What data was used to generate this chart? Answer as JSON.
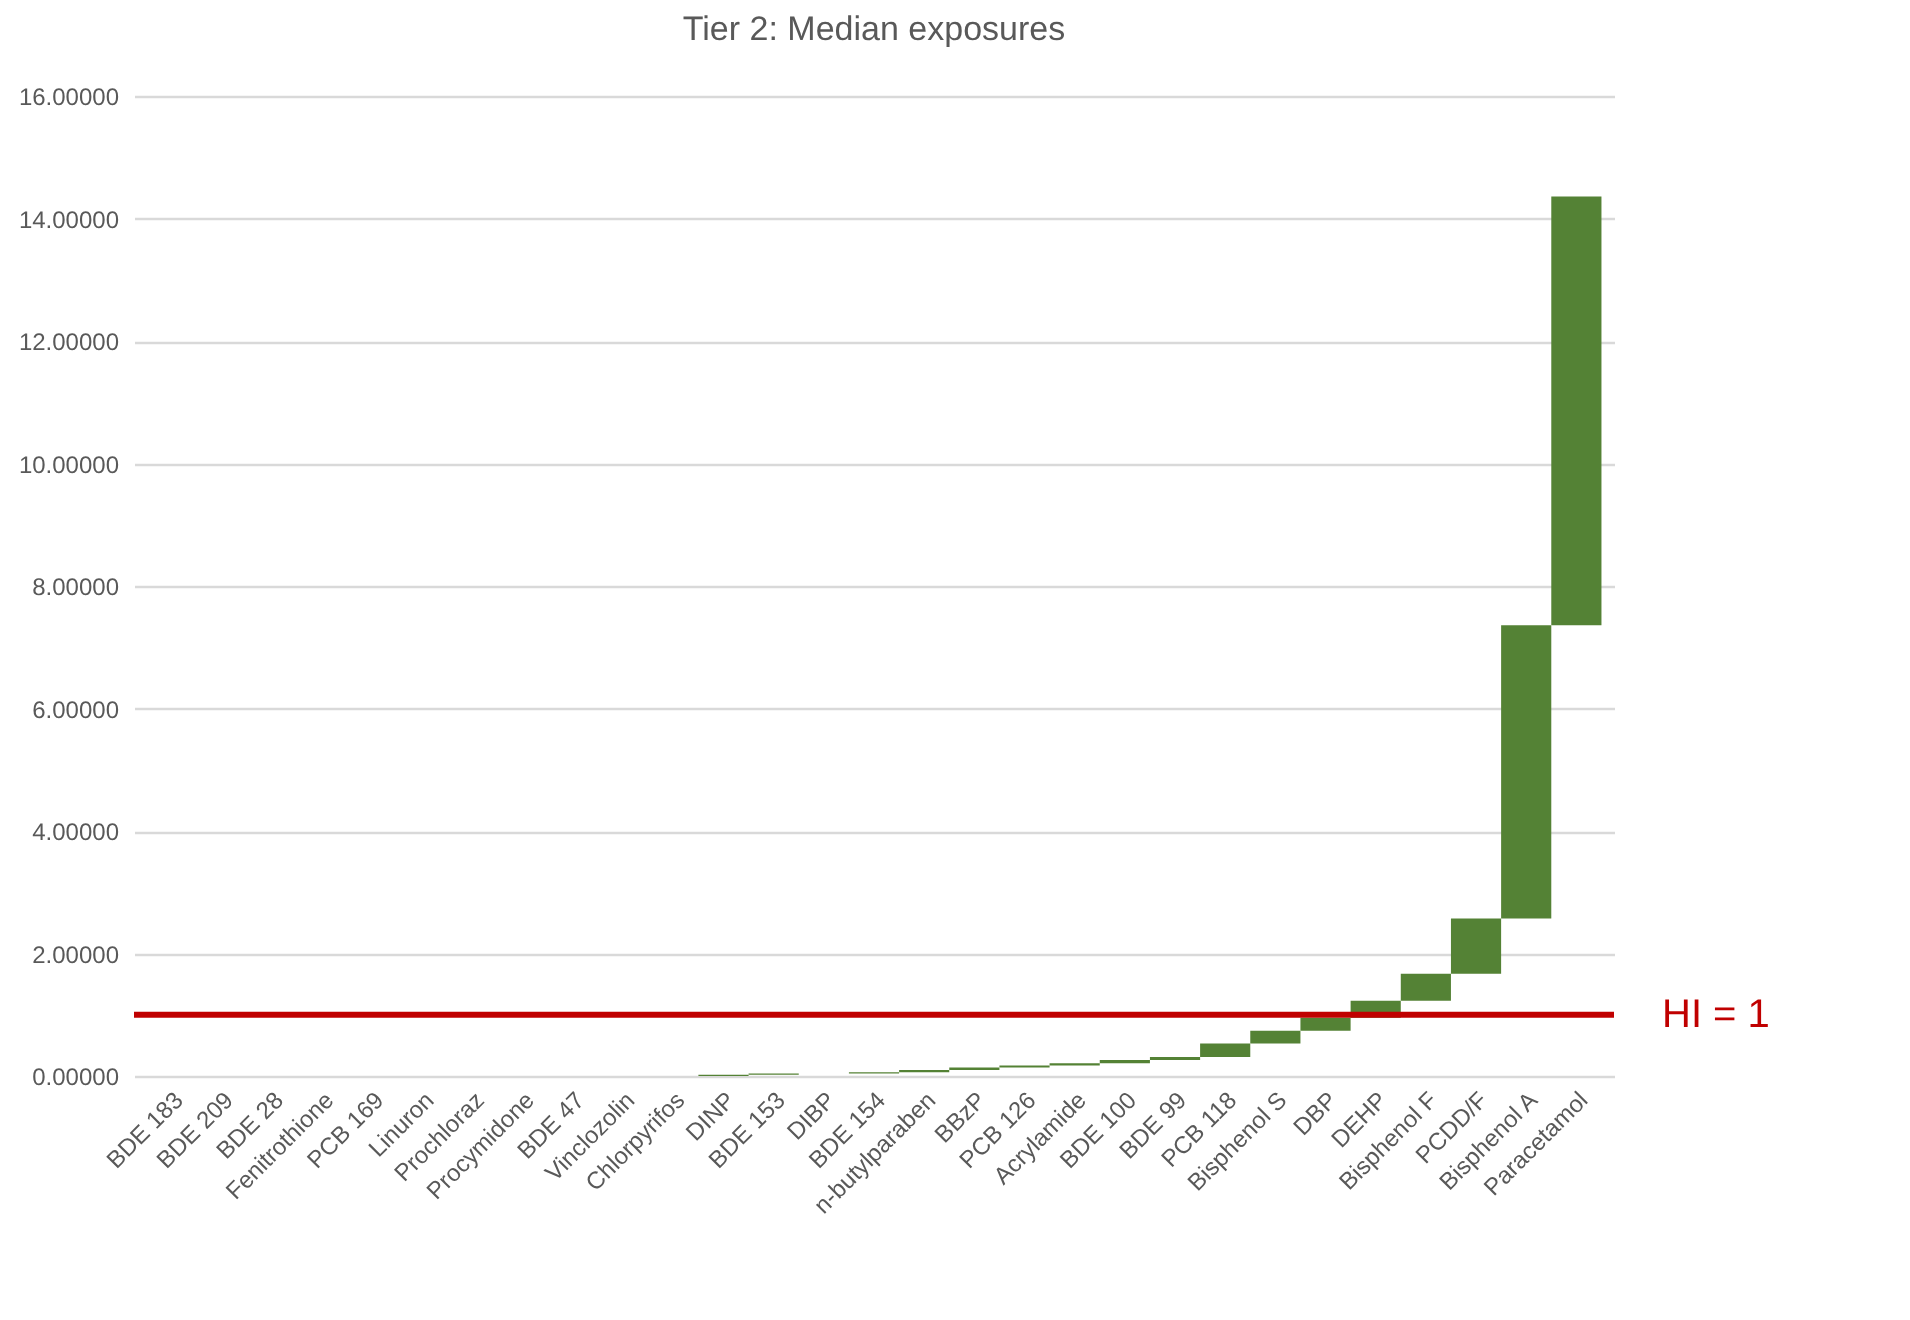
{
  "chart_data": {
    "type": "bar",
    "title": "Tier 2: Median exposures",
    "categories": [
      "BDE 183",
      "BDE 209",
      "BDE 28",
      "Fenitrothione",
      "PCB 169",
      "Linuron",
      "Prochloraz",
      "Procymidone",
      "BDE 47",
      "Vinclozolin",
      "Chlorpyrifos",
      "DINP",
      "BDE 153",
      "DIBP",
      "BDE 154",
      "n-butylparaben",
      "BBzP",
      "PCB 126",
      "Acrylamide",
      "BDE 100",
      "BDE 99",
      "PCB 118",
      "Bisphenol S",
      "DBP",
      "DEHP",
      "Bisphenol F",
      "PCDD/F",
      "Bisphenol A",
      "Paracetamol"
    ],
    "values": [
      null,
      null,
      null,
      null,
      null,
      null,
      null,
      null,
      null,
      null,
      null,
      0.02,
      0.02,
      null,
      0.02,
      0.04,
      0.04,
      0.03,
      0.04,
      0.05,
      0.05,
      0.22,
      0.21,
      0.21,
      0.28,
      0.44,
      0.9,
      4.79,
      7.0
    ],
    "base": [
      null,
      null,
      null,
      null,
      null,
      null,
      null,
      null,
      null,
      null,
      null,
      0,
      0.02,
      null,
      0.04,
      0.06,
      0.1,
      0.14,
      0.17,
      0.21,
      0.26,
      0.31,
      0.53,
      0.74,
      0.95,
      1.23,
      1.67,
      2.57,
      7.36
    ],
    "color": "#548235",
    "ylim": [
      0,
      16
    ],
    "yticks": [
      {
        "value": 0,
        "label": "0.00000"
      },
      {
        "value": 2,
        "label": "2.00000"
      },
      {
        "value": 4,
        "label": "4.00000"
      },
      {
        "value": 6,
        "label": "6.00000"
      },
      {
        "value": 8,
        "label": "8.00000"
      },
      {
        "value": 10,
        "label": "10.00000"
      },
      {
        "value": 12,
        "label": "12.00000"
      },
      {
        "value": 14,
        "label": "14.00000"
      },
      {
        "value": 16,
        "label": "16.00000"
      }
    ],
    "grid": "y",
    "ref_lines": [
      {
        "axis": "y",
        "value": 1,
        "label": "HI = 1",
        "color": "#c00000"
      }
    ]
  }
}
